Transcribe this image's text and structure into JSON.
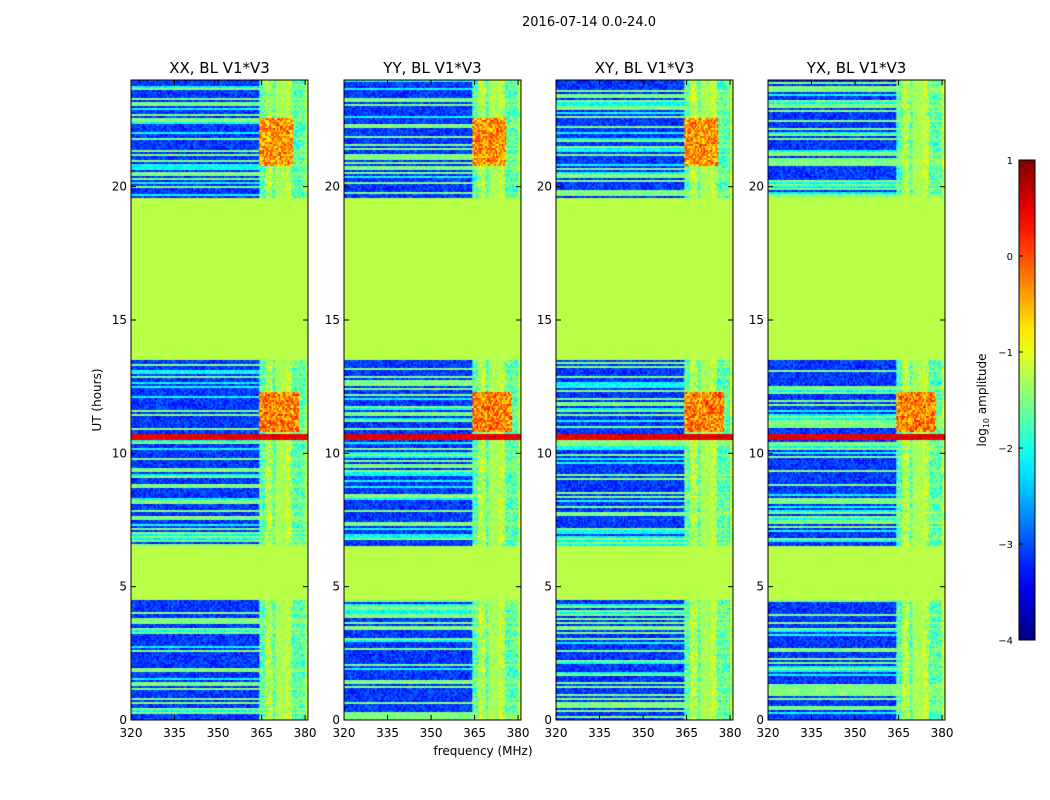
{
  "chart_data": {
    "type": "heatmap",
    "suptitle": "2016-07-14 0.0-24.0",
    "xlabel": "frequency (MHz)",
    "ylabel": "UT (hours)",
    "xlim": [
      320,
      381
    ],
    "ylim": [
      0,
      24
    ],
    "x_ticks": [
      320,
      335,
      350,
      365,
      380
    ],
    "y_ticks": [
      0,
      5,
      10,
      15,
      20
    ],
    "panels": [
      {
        "title": "XX, BL V1*V3"
      },
      {
        "title": "YY, BL V1*V3"
      },
      {
        "title": "XY, BL V1*V3"
      },
      {
        "title": "YX, BL V1*V3"
      }
    ],
    "colorbar": {
      "label": "log10 amplitude",
      "label_main": "log",
      "label_sub": "10",
      "label_tail": " amplitude",
      "range": [
        -4,
        1
      ],
      "ticks": [
        1,
        0,
        -1,
        -2,
        -3,
        -4
      ],
      "colormap": "jet"
    },
    "flagged_ut_ranges": [
      [
        4.5,
        6.5
      ],
      [
        13.5,
        19.6
      ]
    ],
    "flag_color": "#99FF55",
    "strong_rfi_band_mhz": [
      [
        364,
        381
      ]
    ],
    "noise_color": "#0f38d2",
    "high_band_ut": [
      10.5,
      10.7
    ]
  }
}
